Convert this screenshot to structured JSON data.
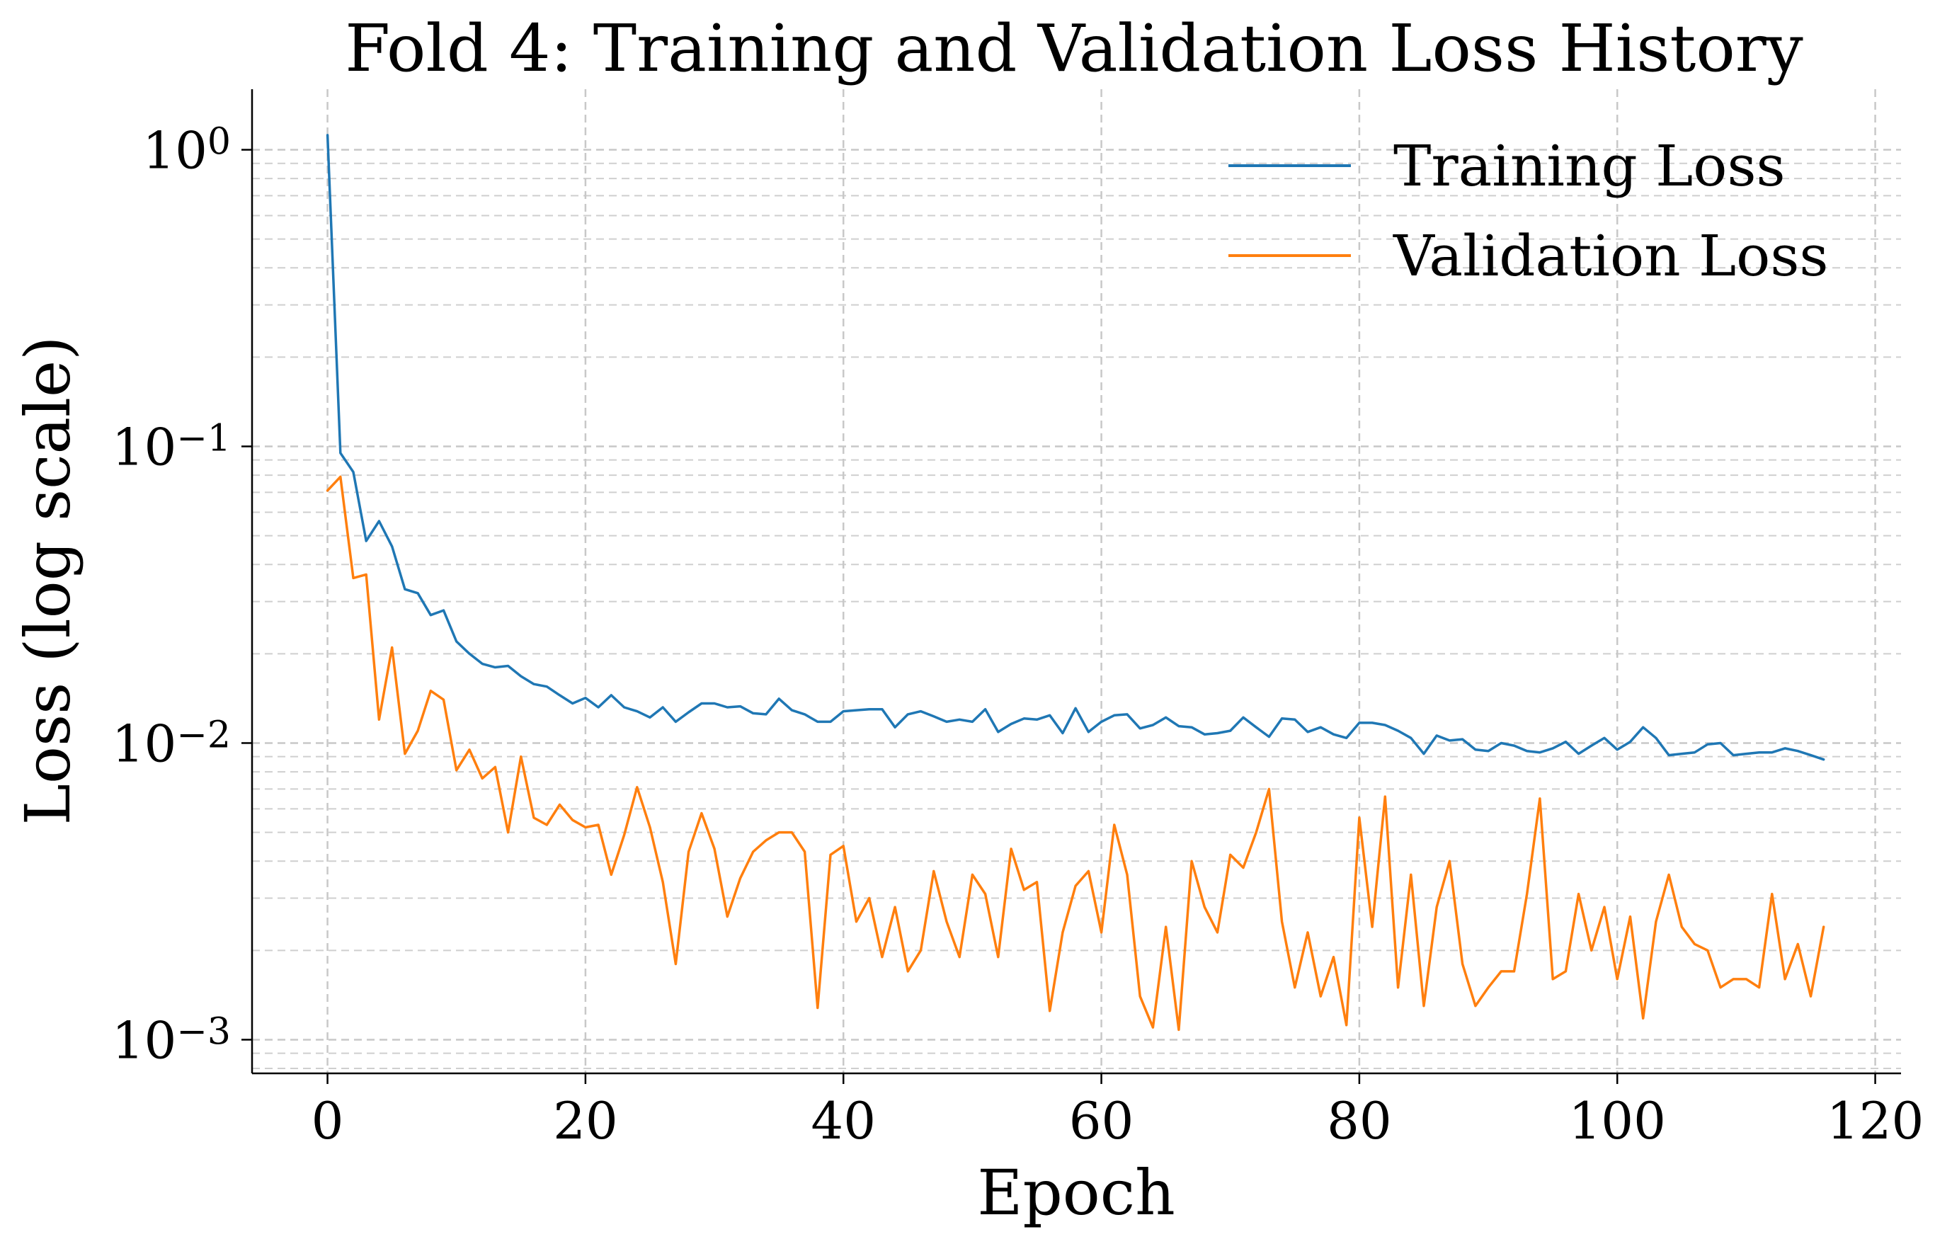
{
  "chart_data": {
    "type": "line",
    "title": "Fold 4: Training and Validation Loss History",
    "xlabel": "Epoch",
    "ylabel": "Loss (log scale)",
    "yscale": "log",
    "xlim": [
      -5.85,
      122
    ],
    "ylim": [
      0.00077,
      1.6
    ],
    "xticks": [
      0,
      20,
      40,
      60,
      80,
      100,
      120
    ],
    "xtick_labels": [
      "0",
      "20",
      "40",
      "60",
      "80",
      "100",
      "120"
    ],
    "yticks": [
      {
        "value": 1,
        "base": "10",
        "exp": "0"
      },
      {
        "value": 0.1,
        "base": "10",
        "exp": "−1"
      },
      {
        "value": 0.01,
        "base": "10",
        "exp": "−2"
      },
      {
        "value": 0.001,
        "base": "10",
        "exp": "−3"
      }
    ],
    "grid": true,
    "legend_position": "top-right",
    "series": [
      {
        "name": "Training Loss",
        "color": "#1f77b4",
        "x_start": 0,
        "values": [
          1.12,
          0.095,
          0.082,
          0.048,
          0.056,
          0.046,
          0.033,
          0.032,
          0.027,
          0.028,
          0.022,
          0.02,
          0.0185,
          0.018,
          0.0182,
          0.0168,
          0.0158,
          0.0155,
          0.0145,
          0.0136,
          0.0142,
          0.0132,
          0.0145,
          0.0132,
          0.0128,
          0.0122,
          0.0132,
          0.0118,
          0.0127,
          0.0136,
          0.0136,
          0.0132,
          0.0133,
          0.0126,
          0.0125,
          0.0141,
          0.0129,
          0.0125,
          0.0118,
          0.0118,
          0.0128,
          0.0129,
          0.013,
          0.013,
          0.0113,
          0.0125,
          0.0128,
          0.0123,
          0.0118,
          0.012,
          0.0118,
          0.013,
          0.0109,
          0.0116,
          0.0121,
          0.012,
          0.0124,
          0.0108,
          0.0131,
          0.0109,
          0.0118,
          0.0124,
          0.0125,
          0.0112,
          0.0115,
          0.0122,
          0.0114,
          0.0113,
          0.0107,
          0.0108,
          0.011,
          0.0122,
          0.0113,
          0.0105,
          0.0121,
          0.012,
          0.0109,
          0.0113,
          0.0107,
          0.0104,
          0.0117,
          0.0117,
          0.0115,
          0.011,
          0.0104,
          0.0092,
          0.0106,
          0.0102,
          0.0103,
          0.0095,
          0.0094,
          0.01,
          0.0098,
          0.0094,
          0.0093,
          0.0096,
          0.0101,
          0.0092,
          0.0098,
          0.0104,
          0.0095,
          0.0101,
          0.0113,
          0.0104,
          0.0091,
          0.0092,
          0.0093,
          0.0099,
          0.01,
          0.0091,
          0.0092,
          0.0093,
          0.0093,
          0.0096,
          0.0094,
          0.0091,
          0.0088
        ]
      },
      {
        "name": "Validation Loss",
        "color": "#ff7f0e",
        "x_start": 0,
        "values": [
          0.071,
          0.079,
          0.036,
          0.037,
          0.012,
          0.021,
          0.0092,
          0.011,
          0.015,
          0.014,
          0.0081,
          0.0095,
          0.0076,
          0.0083,
          0.005,
          0.009,
          0.0056,
          0.0053,
          0.0062,
          0.0055,
          0.0052,
          0.0053,
          0.0036,
          0.0049,
          0.0071,
          0.0052,
          0.0034,
          0.0018,
          0.0043,
          0.0058,
          0.0044,
          0.0026,
          0.0035,
          0.0043,
          0.0047,
          0.005,
          0.005,
          0.0043,
          0.00128,
          0.0042,
          0.0045,
          0.0025,
          0.003,
          0.0019,
          0.0028,
          0.0017,
          0.002,
          0.0037,
          0.0025,
          0.0019,
          0.0036,
          0.0031,
          0.0019,
          0.0044,
          0.0032,
          0.0034,
          0.00125,
          0.0023,
          0.0033,
          0.0037,
          0.0023,
          0.0053,
          0.0036,
          0.0014,
          0.0011,
          0.0024,
          0.00108,
          0.004,
          0.0028,
          0.0023,
          0.0042,
          0.0038,
          0.005,
          0.007,
          0.0025,
          0.0015,
          0.0023,
          0.0014,
          0.0019,
          0.00112,
          0.0056,
          0.0024,
          0.0066,
          0.0015,
          0.0036,
          0.0013,
          0.0028,
          0.004,
          0.0018,
          0.0013,
          0.0015,
          0.0017,
          0.0017,
          0.0031,
          0.0065,
          0.0016,
          0.0017,
          0.0031,
          0.002,
          0.0028,
          0.0016,
          0.0026,
          0.00118,
          0.0025,
          0.0036,
          0.0024,
          0.0021,
          0.002,
          0.0015,
          0.0016,
          0.0016,
          0.0015,
          0.0031,
          0.0016,
          0.0021,
          0.0014,
          0.0024
        ]
      }
    ]
  }
}
